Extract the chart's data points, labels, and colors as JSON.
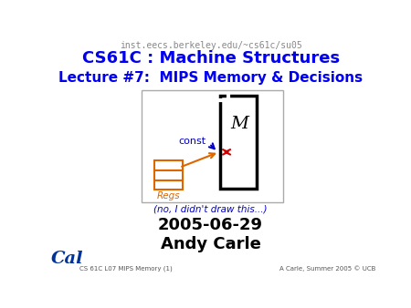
{
  "url_text": "inst.eecs.berkeley.edu/~cs61c/su05",
  "title_text": "CS61C : Machine Structures",
  "lecture_text": "Lecture #7:  MIPS Memory & Decisions",
  "caption_text": "(no, I didn't draw this...)",
  "date_text": "2005-06-29",
  "author_text": "Andy Carle",
  "footer_left": "CS 61C L07 MIPS Memory (1)",
  "footer_right": "A Carle, Summer 2005 © UCB",
  "title_color": "#0000ee",
  "url_color": "#888888",
  "lecture_color": "#0000ee",
  "footer_color": "#555555",
  "orange_color": "#dd6600",
  "red_color": "#cc0000",
  "blue_label_color": "#0000cc",
  "cal_color": "#003399",
  "caption_color": "#0000cc"
}
